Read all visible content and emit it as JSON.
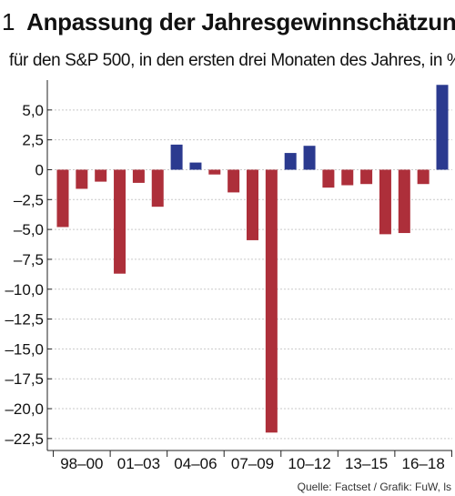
{
  "header": {
    "number": "1",
    "title": "Anpassung der Jahresgewinnschätzung",
    "subtitle": "für den S&P 500, in den ersten drei Monaten des Jahres, in %"
  },
  "source": "Quelle: Factset / Grafik: FuW, ls",
  "colors": {
    "positive": "#2b3a8f",
    "negative": "#ad2f3a",
    "grid": "#c9c9c9",
    "axis": "#222222"
  },
  "chart_data": {
    "type": "bar",
    "title": "Anpassung der Jahresgewinnschätzung",
    "subtitle": "für den S&P 500, in den ersten drei Monaten des Jahres, in %",
    "categories": [
      "1998",
      "1999",
      "2000",
      "2001",
      "2002",
      "2003",
      "2004",
      "2005",
      "2006",
      "2007",
      "2008",
      "2009",
      "2010",
      "2011",
      "2012",
      "2013",
      "2014",
      "2015",
      "2016",
      "2017",
      "2018"
    ],
    "values": [
      -4.8,
      -1.6,
      -1.0,
      -8.7,
      -1.1,
      -3.1,
      2.1,
      0.6,
      -0.4,
      -1.9,
      -5.9,
      -22.0,
      1.4,
      2.0,
      -1.5,
      -1.3,
      -1.2,
      -5.4,
      -5.3,
      -1.2,
      7.1
    ],
    "group_labels": [
      "98–00",
      "01–03",
      "04–06",
      "07–09",
      "10–12",
      "13–15",
      "16–18"
    ],
    "yticks": [
      "5,0",
      "2,5",
      "0",
      "–2,5",
      "–5,0",
      "–7,5",
      "–10,0",
      "–12,5",
      "–15,0",
      "–17,5",
      "–20,0",
      "–22,5"
    ],
    "ytick_values": [
      5,
      2.5,
      0,
      -2.5,
      -5,
      -7.5,
      -10,
      -12.5,
      -15,
      -17.5,
      -20,
      -22.5
    ],
    "ylim": [
      -23.5,
      7.5
    ],
    "grid": true
  }
}
